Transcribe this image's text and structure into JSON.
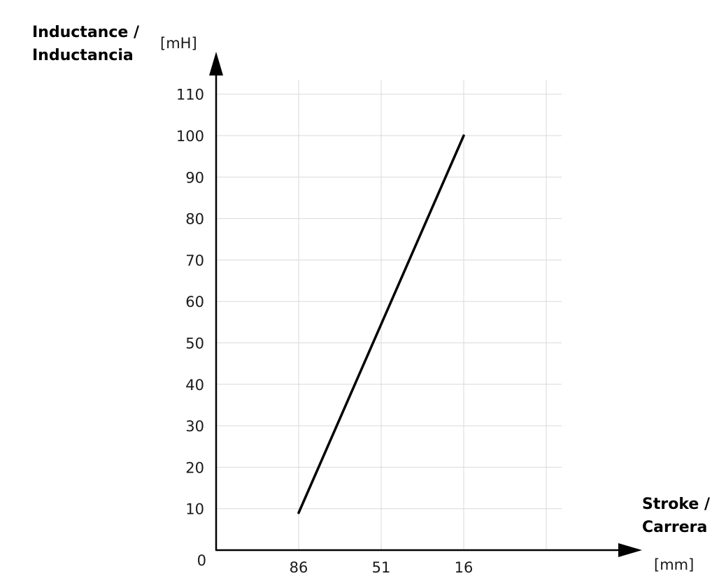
{
  "chart_data": {
    "type": "line",
    "title": "",
    "ylabel": [
      "Inductance /",
      "Inductancia"
    ],
    "yunit": "[mH]",
    "xlabel": [
      "Stroke /",
      "Carrera"
    ],
    "xunit": "[mm]",
    "origin_label": "0",
    "categories": [
      "86",
      "51",
      "16"
    ],
    "ylim": [
      0,
      110
    ],
    "yticks": [
      10,
      20,
      30,
      40,
      50,
      60,
      70,
      80,
      90,
      100,
      110
    ],
    "grid": true,
    "series": [
      {
        "x": [
          "86",
          "16"
        ],
        "values": [
          9,
          100
        ]
      }
    ],
    "colors": {
      "line": "#000000",
      "grid": "#d9d9d9",
      "axis": "#000000"
    }
  }
}
